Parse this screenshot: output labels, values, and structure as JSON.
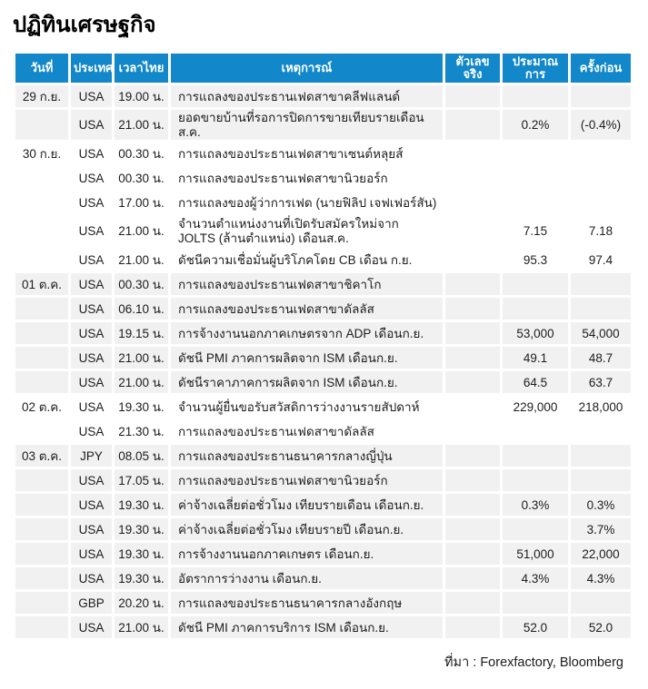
{
  "page_title": "ปฏิทินเศรษฐกิจ",
  "source_note": "ที่มา : Forexfactory, Bloomberg",
  "colors": {
    "header_bg": "#1287c9",
    "shaded_row_bg": "#f1f1f2",
    "row_bg": "#ffffff",
    "header_text": "#ffffff",
    "body_text": "#1c1c1c"
  },
  "table": {
    "columns": [
      {
        "key": "date",
        "label": "วันที่"
      },
      {
        "key": "country",
        "label": "ประเทศ"
      },
      {
        "key": "time",
        "label": "เวลาไทย"
      },
      {
        "key": "event",
        "label": "เหตุการณ์"
      },
      {
        "key": "actual",
        "label": "ตัวเลขจริง"
      },
      {
        "key": "forecast",
        "label": "ประมาณการ"
      },
      {
        "key": "previous",
        "label": "ครั้งก่อน"
      }
    ],
    "rows": [
      {
        "date": "29 ก.ย.",
        "country": "USA",
        "time": "19.00 น.",
        "event": "การแถลงของประธานเฟดสาขาคลีฟแลนด์",
        "actual": "",
        "forecast": "",
        "previous": "",
        "shaded": true
      },
      {
        "date": "",
        "country": "USA",
        "time": "21.00 น.",
        "event": "ยอดขายบ้านที่รอการปิดการขายเทียบรายเดือนส.ค.",
        "actual": "",
        "forecast": "0.2%",
        "previous": "(-0.4%)",
        "shaded": true
      },
      {
        "date": "30 ก.ย.",
        "country": "USA",
        "time": "00.30 น.",
        "event": "การแถลงของประธานเฟดสาขาเซนต์หลุยส์",
        "actual": "",
        "forecast": "",
        "previous": "",
        "shaded": false
      },
      {
        "date": "",
        "country": "USA",
        "time": "00.30 น.",
        "event": "การแถลงของประธานเฟดสาขานิวยอร์ก",
        "actual": "",
        "forecast": "",
        "previous": "",
        "shaded": false
      },
      {
        "date": "",
        "country": "USA",
        "time": "17.00 น.",
        "event": "การแถลงของผู้ว่าการเฟด (นายฟิลิป เจฟเฟอร์สัน)",
        "actual": "",
        "forecast": "",
        "previous": "",
        "shaded": false
      },
      {
        "date": "",
        "country": "USA",
        "time": "21.00 น.",
        "event": "จำนวนตำแหน่งงานที่เปิดรับสมัครใหม่จาก JOLTS (ล้านตำแหน่ง) เดือนส.ค.",
        "actual": "",
        "forecast": "7.15",
        "previous": "7.18",
        "shaded": false
      },
      {
        "date": "",
        "country": "USA",
        "time": "21.00 น.",
        "event": "ดัชนีความเชื่อมั่นผู้บริโภคโดย CB เดือน ก.ย.",
        "actual": "",
        "forecast": "95.3",
        "previous": "97.4",
        "shaded": false
      },
      {
        "date": "01 ต.ค.",
        "country": "USA",
        "time": "00.30 น.",
        "event": "การแถลงของประธานเฟดสาขาชิคาโก",
        "actual": "",
        "forecast": "",
        "previous": "",
        "shaded": true
      },
      {
        "date": "",
        "country": "USA",
        "time": "06.10 น.",
        "event": "การแถลงของประธานเฟดสาขาดัลลัส",
        "actual": "",
        "forecast": "",
        "previous": "",
        "shaded": true
      },
      {
        "date": "",
        "country": "USA",
        "time": "19.15 น.",
        "event": "การจ้างงานนอกภาคเกษตรจาก ADP เดือนก.ย.",
        "actual": "",
        "forecast": "53,000",
        "previous": "54,000",
        "shaded": true
      },
      {
        "date": "",
        "country": "USA",
        "time": "21.00 น.",
        "event": "ดัชนี PMI ภาคการผลิตจาก ISM เดือนก.ย.",
        "actual": "",
        "forecast": "49.1",
        "previous": "48.7",
        "shaded": true
      },
      {
        "date": "",
        "country": "USA",
        "time": "21.00 น.",
        "event": "ดัชนีราคาภาคการผลิตจาก ISM เดือนก.ย.",
        "actual": "",
        "forecast": "64.5",
        "previous": "63.7",
        "shaded": true
      },
      {
        "date": "02 ต.ค.",
        "country": "USA",
        "time": "19.30 น.",
        "event": "จำนวนผู้ยื่นขอรับสวัสดิการว่างงานรายสัปดาห์",
        "actual": "",
        "forecast": "229,000",
        "previous": "218,000",
        "shaded": false
      },
      {
        "date": "",
        "country": "USA",
        "time": "21.30 น.",
        "event": "การแถลงของประธานเฟดสาขาดัลลัส",
        "actual": "",
        "forecast": "",
        "previous": "",
        "shaded": false
      },
      {
        "date": "03 ต.ค.",
        "country": "JPY",
        "time": "08.05 น.",
        "event": "การแถลงของประธานธนาคารกลางญี่ปุ่น",
        "actual": "",
        "forecast": "",
        "previous": "",
        "shaded": true
      },
      {
        "date": "",
        "country": "USA",
        "time": "17.05 น.",
        "event": "การแถลงของประธานเฟดสาขานิวยอร์ก",
        "actual": "",
        "forecast": "",
        "previous": "",
        "shaded": true
      },
      {
        "date": "",
        "country": "USA",
        "time": "19.30 น.",
        "event": "ค่าจ้างเฉลี่ยต่อชั่วโมง เทียบรายเดือน เดือนก.ย.",
        "actual": "",
        "forecast": "0.3%",
        "previous": "0.3%",
        "shaded": true
      },
      {
        "date": "",
        "country": "USA",
        "time": "19.30 น.",
        "event": "ค่าจ้างเฉลี่ยต่อชั่วโมง เทียบรายปี เดือนก.ย.",
        "actual": "",
        "forecast": "",
        "previous": "3.7%",
        "shaded": true
      },
      {
        "date": "",
        "country": "USA",
        "time": "19.30 น.",
        "event": "การจ้างงานนอกภาคเกษตร เดือนก.ย.",
        "actual": "",
        "forecast": "51,000",
        "previous": "22,000",
        "shaded": true
      },
      {
        "date": "",
        "country": "USA",
        "time": "19.30 น.",
        "event": "อัตราการว่างงาน เดือนก.ย.",
        "actual": "",
        "forecast": "4.3%",
        "previous": "4.3%",
        "shaded": true
      },
      {
        "date": "",
        "country": "GBP",
        "time": "20.20 น.",
        "event": "การแถลงของประธานธนาคารกลางอังกฤษ",
        "actual": "",
        "forecast": "",
        "previous": "",
        "shaded": true
      },
      {
        "date": "",
        "country": "USA",
        "time": "21.00 น.",
        "event": "ดัชนี PMI ภาคการบริการ ISM เดือนก.ย.",
        "actual": "",
        "forecast": "52.0",
        "previous": "52.0",
        "shaded": true
      }
    ]
  }
}
